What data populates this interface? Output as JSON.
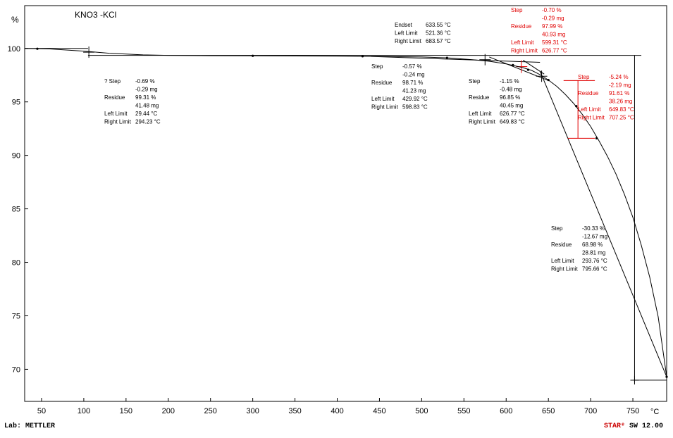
{
  "chart_data": {
    "type": "line",
    "title": "KNO3 -KCl",
    "ylabel": "%",
    "xlabel": "°C",
    "xlim": [
      30,
      790
    ],
    "ylim": [
      67,
      104
    ],
    "xticks": [
      50,
      100,
      150,
      200,
      250,
      300,
      350,
      400,
      450,
      500,
      550,
      600,
      650,
      700,
      750
    ],
    "yticks": [
      70,
      75,
      80,
      85,
      90,
      95,
      100
    ],
    "series": [
      {
        "color": "#000000",
        "x": [
          30,
          60,
          100,
          130,
          170,
          200,
          250,
          294,
          350,
          400,
          450,
          500,
          530,
          560,
          580,
          600,
          620,
          630,
          640,
          650,
          660,
          670,
          680,
          690,
          700,
          710,
          720,
          730,
          740,
          750,
          760,
          770,
          780,
          790
        ],
        "y": [
          100.0,
          99.95,
          99.75,
          99.55,
          99.4,
          99.35,
          99.32,
          99.31,
          99.29,
          99.27,
          99.25,
          99.2,
          99.12,
          98.95,
          98.8,
          98.55,
          98.2,
          97.95,
          97.55,
          97.05,
          96.45,
          95.7,
          94.85,
          93.85,
          92.7,
          91.35,
          89.9,
          88.25,
          86.35,
          84.2,
          81.6,
          78.6,
          74.9,
          69.3
        ]
      }
    ],
    "annotations": [
      {
        "color": "#000000",
        "rows": [
          [
            "? Step",
            "-0.69 %"
          ],
          [
            "",
            "-0.29 mg"
          ],
          [
            "Residue",
            "99.31 %"
          ],
          [
            "",
            "41.48 mg"
          ],
          [
            "Left Limit",
            "29.44 °C"
          ],
          [
            "Right Limit",
            "294.23 °C"
          ]
        ]
      },
      {
        "color": "#000000",
        "rows": [
          [
            "Endset",
            "633.55 °C"
          ],
          [
            "Left Limit",
            "521.36 °C"
          ],
          [
            "Right Limit",
            "683.57 °C"
          ]
        ]
      },
      {
        "color": "#000000",
        "rows": [
          [
            "Step",
            "-0.57 %"
          ],
          [
            "",
            "-0.24 mg"
          ],
          [
            "Residue",
            "98.71 %"
          ],
          [
            "",
            "41.23 mg"
          ],
          [
            "Left Limit",
            "429.92 °C"
          ],
          [
            "Right Limit",
            "598.83 °C"
          ]
        ]
      },
      {
        "color": "#e00000",
        "rows": [
          [
            "Step",
            "-0.70 %"
          ],
          [
            "",
            "-0.29 mg"
          ],
          [
            "Residue",
            "97.99 %"
          ],
          [
            "",
            "40.93 mg"
          ],
          [
            "Left Limit",
            "599.31 °C"
          ],
          [
            "Right Limit",
            "626.77 °C"
          ]
        ]
      },
      {
        "color": "#000000",
        "rows": [
          [
            "Step",
            "-1.15 %"
          ],
          [
            "",
            "-0.48 mg"
          ],
          [
            "Residue",
            "96.85 %"
          ],
          [
            "",
            "40.45 mg"
          ],
          [
            "Left Limit",
            "626.77 °C"
          ],
          [
            "Right Limit",
            "649.83 °C"
          ]
        ]
      },
      {
        "color": "#e00000",
        "rows": [
          [
            "Step",
            "-5.24 %"
          ],
          [
            "",
            "-2.19 mg"
          ],
          [
            "Residue",
            "91.61 %"
          ],
          [
            "",
            "38.26 mg"
          ],
          [
            "Left Limit",
            "649.83 °C"
          ],
          [
            "Right Limit",
            "707.25 °C"
          ]
        ]
      },
      {
        "color": "#000000",
        "rows": [
          [
            "Step",
            "-30.33 %"
          ],
          [
            "",
            "-12.67 mg"
          ],
          [
            "Residue",
            "68.98 %"
          ],
          [
            "",
            "28.81 mg"
          ],
          [
            "Left Limit",
            "293.76 °C"
          ],
          [
            "Right Limit",
            "795.66 °C"
          ]
        ]
      }
    ]
  },
  "footer": {
    "lab": "Lab: METTLER",
    "software_brand": "STARᵉ",
    "software_version": "SW 12.00"
  }
}
